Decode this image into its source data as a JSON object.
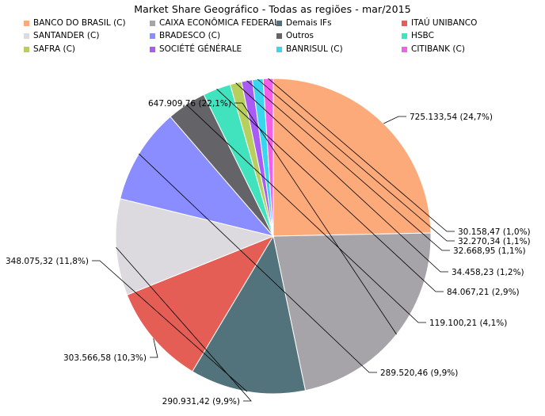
{
  "chart_data": {
    "type": "pie",
    "title": "Market Share Geográfico - Todas as regiões - mar/2015",
    "legend_placement": "top",
    "slices": [
      {
        "name": "BANCO DO BRASIL  (C)",
        "value": 725133.54,
        "label": "725.133,54 (24,7%)",
        "color": "#fdaa7b"
      },
      {
        "name": "CAIXA ECONÔMICA FEDERAL",
        "value": 647909.76,
        "label": "647.909,76 (22,1%)",
        "color": "#a6a4a8"
      },
      {
        "name": "Demais IFs",
        "value": 348075.32,
        "label": "348.075,32 (11,8%)",
        "color": "#52737b"
      },
      {
        "name": "ITAÚ UNIBANCO",
        "value": 303566.58,
        "label": "303.566,58 (10,3%)",
        "color": "#e45e55"
      },
      {
        "name": "SANTANDER  (C)",
        "value": 290931.42,
        "label": "290.931,42 (9,9%)",
        "color": "#dcdadf"
      },
      {
        "name": "BRADESCO (C)",
        "value": 289520.46,
        "label": "289.520,46 (9,9%)",
        "color": "#8a8dff"
      },
      {
        "name": "Outros",
        "value": 119100.21,
        "label": "119.100,21 (4,1%)",
        "color": "#646367"
      },
      {
        "name": "HSBC",
        "value": 84067.21,
        "label": "84.067,21 (2,9%)",
        "color": "#41e2be"
      },
      {
        "name": "SAFRA (C)",
        "value": 34458.23,
        "label": "34.458,23 (1,2%)",
        "color": "#b8cf5e"
      },
      {
        "name": "SOCIÉTÉ GÉNÉRALE",
        "value": 32668.95,
        "label": "32.668,95 (1,1%)",
        "color": "#a85cf5"
      },
      {
        "name": "BANRISUL (C)",
        "value": 32270.34,
        "label": "32.270,34 (1,1%)",
        "color": "#39d7ee"
      },
      {
        "name": "CITIBANK (C)",
        "value": 30158.47,
        "label": "30.158,47 (1,0%)",
        "color": "#f45fe9"
      }
    ]
  }
}
